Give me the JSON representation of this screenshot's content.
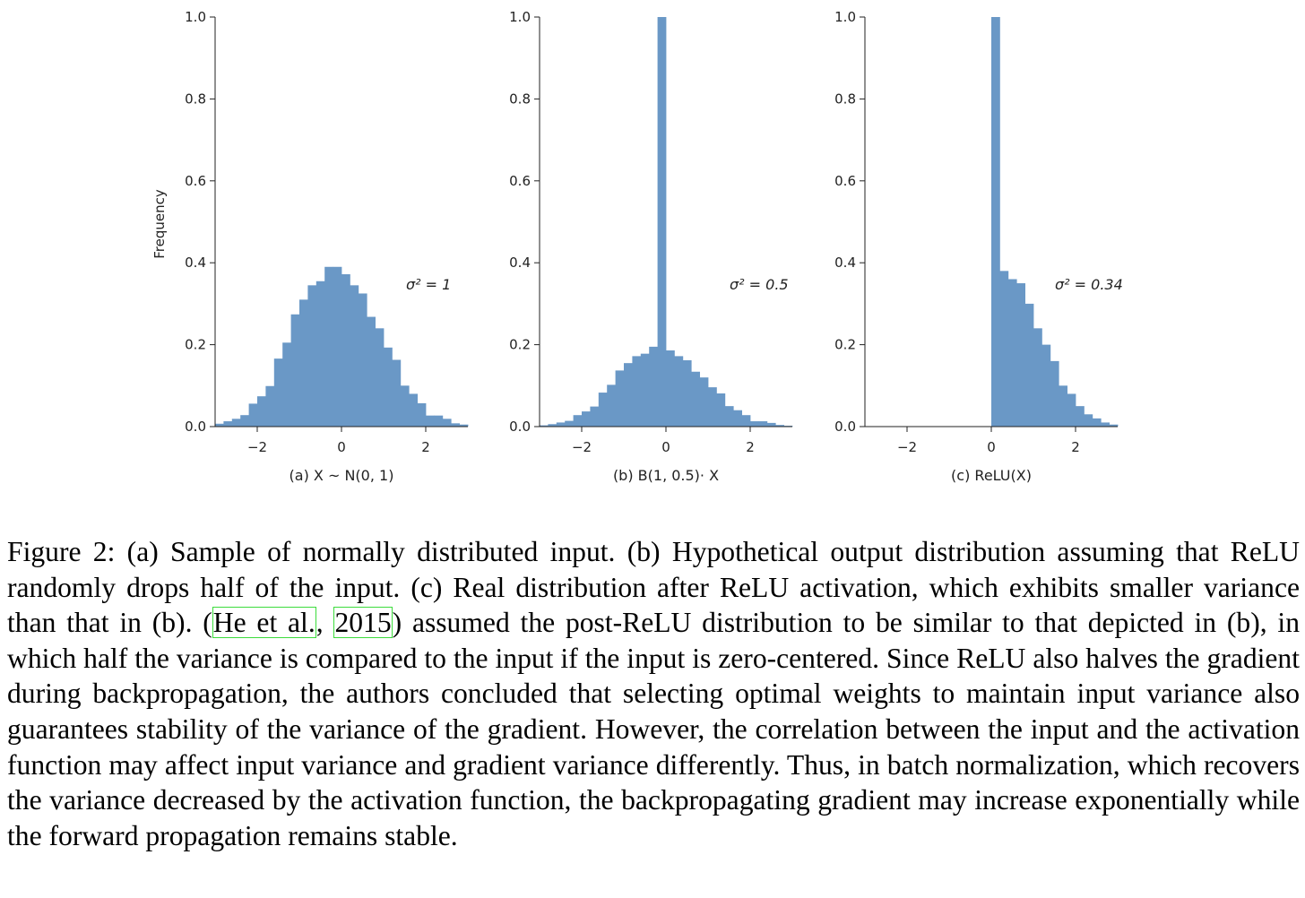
{
  "chart_data": [
    {
      "type": "bar",
      "subplot_label": "(a) X ~ N(0, 1)",
      "ylabel": "Frequency",
      "annotation": "σ² = 1",
      "xlim": [
        -3,
        3
      ],
      "ylim": [
        0,
        1.0
      ],
      "xticks": [
        -2,
        0,
        2
      ],
      "xtick_labels": [
        "−2",
        "0",
        "2"
      ],
      "yticks": [
        0.0,
        0.2,
        0.4,
        0.6,
        0.8,
        1.0
      ],
      "ytick_labels": [
        "0.0",
        "0.2",
        "0.4",
        "0.6",
        "0.8",
        "1.0"
      ],
      "bin_start": -3.0,
      "bin_width": 0.2,
      "values": [
        0.007,
        0.013,
        0.019,
        0.028,
        0.056,
        0.074,
        0.099,
        0.166,
        0.205,
        0.274,
        0.31,
        0.345,
        0.355,
        0.39,
        0.39,
        0.372,
        0.345,
        0.325,
        0.268,
        0.24,
        0.193,
        0.163,
        0.1,
        0.08,
        0.057,
        0.027,
        0.027,
        0.019,
        0.008,
        0.005
      ],
      "color": "#6a98c6"
    },
    {
      "type": "bar",
      "subplot_label": "(b) B(1, 0.5)· X",
      "ylabel": "",
      "annotation": "σ² = 0.5",
      "xlim": [
        -3,
        3
      ],
      "ylim": [
        0,
        1.0
      ],
      "xticks": [
        -2,
        0,
        2
      ],
      "xtick_labels": [
        "−2",
        "0",
        "2"
      ],
      "yticks": [
        0.0,
        0.2,
        0.4,
        0.6,
        0.8,
        1.0
      ],
      "ytick_labels": [
        "0.0",
        "0.2",
        "0.4",
        "0.6",
        "0.8",
        "1.0"
      ],
      "bin_start": -3.0,
      "bin_width": 0.2,
      "values": [
        0.003,
        0.006,
        0.01,
        0.014,
        0.028,
        0.037,
        0.049,
        0.083,
        0.102,
        0.137,
        0.155,
        0.172,
        0.178,
        0.195,
        1.0,
        0.186,
        0.172,
        0.162,
        0.134,
        0.12,
        0.096,
        0.081,
        0.05,
        0.04,
        0.028,
        0.013,
        0.013,
        0.009,
        0.004,
        0.002
      ],
      "color": "#6a98c6"
    },
    {
      "type": "bar",
      "subplot_label": "(c) ReLU(X)",
      "ylabel": "",
      "annotation": "σ² = 0.34",
      "xlim": [
        -3,
        3
      ],
      "ylim": [
        0,
        1.0
      ],
      "xticks": [
        -2,
        0,
        2
      ],
      "xtick_labels": [
        "−2",
        "0",
        "2"
      ],
      "yticks": [
        0.0,
        0.2,
        0.4,
        0.6,
        0.8,
        1.0
      ],
      "ytick_labels": [
        "0.0",
        "0.2",
        "0.4",
        "0.6",
        "0.8",
        "1.0"
      ],
      "bin_start": -3.0,
      "bin_width": 0.2,
      "values": [
        0,
        0,
        0,
        0,
        0,
        0,
        0,
        0,
        0,
        0,
        0,
        0,
        0,
        0,
        0,
        1.0,
        0.38,
        0.36,
        0.35,
        0.3,
        0.24,
        0.2,
        0.16,
        0.1,
        0.08,
        0.05,
        0.03,
        0.02,
        0.01,
        0.005
      ],
      "color": "#6a98c6"
    }
  ],
  "caption": {
    "p1": "Figure 2: (a) Sample of normally distributed input. (b) Hypothetical output distribution assuming that ReLU randomly drops half of the input. (c) Real distribution after ReLU activation, which exhibits smaller variance than that in (b). (",
    "cite_author": "He et al.",
    "cite_sep": ", ",
    "cite_year": "2015",
    "p2": ") assumed the post-ReLU distribution to be similar to that depicted in (b), in which half the variance is compared to the input if the input is zero-centered. Since ReLU also halves the gradient during backpropagation, the authors concluded that selecting optimal weights to maintain input variance also guarantees stability of the variance of the gradient. However, the correlation between the input and the activation function may affect input variance and gradient variance differently. Thus, in batch normalization, which recovers the variance decreased by the activation function, the backpropagating gradient may increase exponentially while the forward propagation remains stable."
  }
}
